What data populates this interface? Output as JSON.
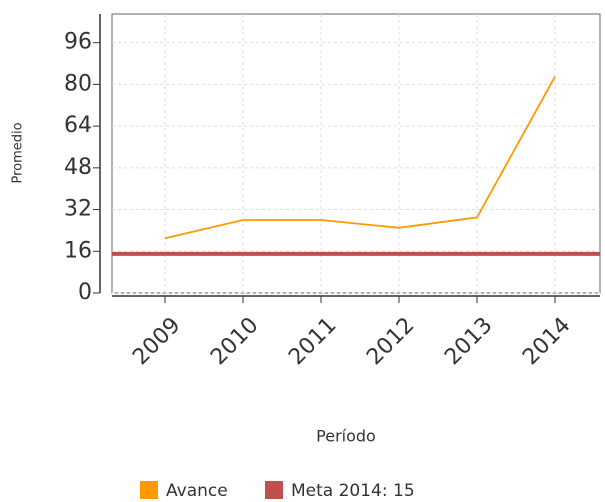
{
  "chart_data": {
    "type": "line",
    "x_label": "Período",
    "y_label": "Promedio",
    "categories": [
      "2009",
      "2010",
      "2011",
      "2012",
      "2013",
      "2014"
    ],
    "series": [
      {
        "name": "Avance",
        "color": "#ff9900",
        "values": [
          21,
          28,
          28,
          25,
          29,
          83
        ]
      },
      {
        "name": "Meta 2014: 15",
        "color": "#c0504d",
        "values": [
          15,
          15,
          15,
          15,
          15,
          15
        ]
      }
    ],
    "ylim": [
      0,
      107
    ],
    "yticks": [
      0,
      16,
      32,
      48,
      64,
      80,
      96
    ],
    "grid": true,
    "legend": "bottom"
  }
}
